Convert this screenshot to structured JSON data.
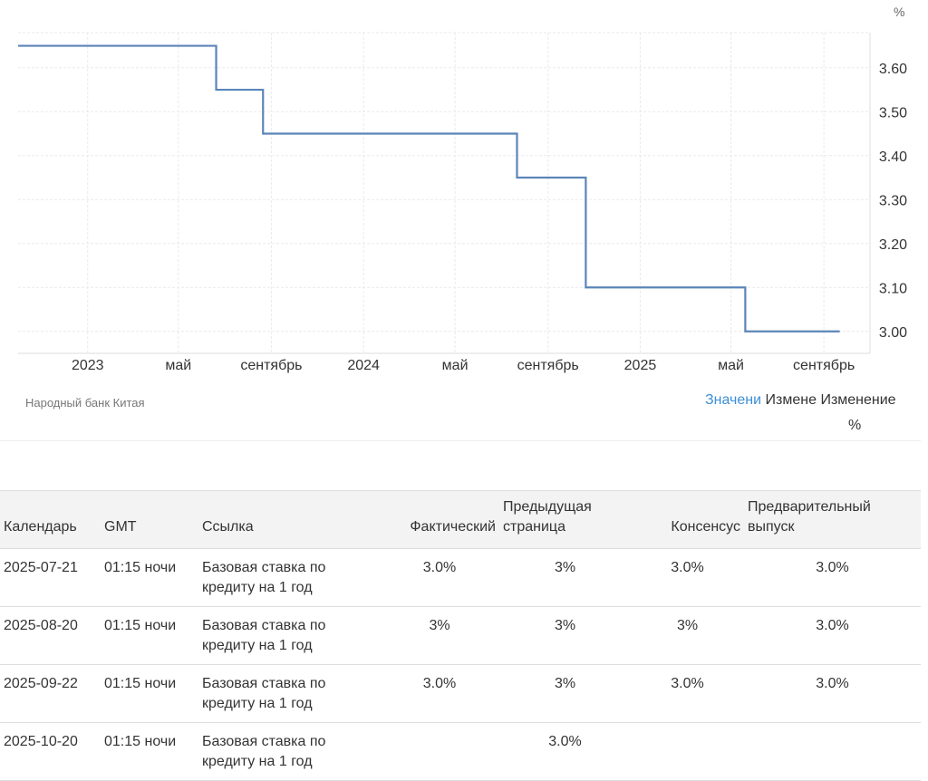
{
  "chart": {
    "unit_label": "%",
    "source": "Народный банк Китая",
    "tabs": {
      "value": "Значени",
      "change": "Измене",
      "change_pct_line1": "Изменение",
      "change_pct_line2": "%"
    }
  },
  "chart_data": {
    "type": "line",
    "step": true,
    "x_tick_labels": [
      "2023",
      "май",
      "сентябрь",
      "2024",
      "май",
      "сентябрь",
      "2025",
      "май",
      "сентябрь"
    ],
    "x_tick_dates": [
      "2023-01-01",
      "2023-05-01",
      "2023-09-01",
      "2024-01-01",
      "2024-05-01",
      "2024-09-01",
      "2025-01-01",
      "2025-05-01",
      "2025-09-01"
    ],
    "y_ticks": [
      3.6,
      3.5,
      3.4,
      3.3,
      3.2,
      3.1,
      3.0
    ],
    "y_tick_labels": [
      "3.60",
      "3.50",
      "3.40",
      "3.30",
      "3.20",
      "3.10",
      "3.00"
    ],
    "ylim": [
      2.95,
      3.68
    ],
    "xlim": [
      "2022-10-01",
      "2025-11-01"
    ],
    "y_axis_position": "right",
    "grid": true,
    "line_color": "#5b85b8",
    "series": [
      {
        "points": [
          {
            "x": "2022-10-01",
            "y": 3.65
          },
          {
            "x": "2023-06-20",
            "y": 3.55
          },
          {
            "x": "2023-08-21",
            "y": 3.45
          },
          {
            "x": "2024-07-22",
            "y": 3.35
          },
          {
            "x": "2024-10-21",
            "y": 3.1
          },
          {
            "x": "2025-05-20",
            "y": 3.0
          },
          {
            "x": "2025-09-22",
            "y": 3.0
          }
        ]
      }
    ]
  },
  "table": {
    "headers": {
      "calendar": "Календарь",
      "gmt": "GMT",
      "reference": "Ссылка",
      "actual": "Фактический",
      "previous_1": "Предыдущая",
      "previous_2": "страница",
      "consensus": "Консенсус",
      "forecast_1": "Предварительный",
      "forecast_2": "выпуск"
    },
    "rows": [
      {
        "date": "2025-07-21",
        "time": "01:15 ночи",
        "ref_1": "Базовая ставка по",
        "ref_2": "кредиту на 1 год",
        "actual": "3.0%",
        "previous": "3%",
        "consensus": "3.0%",
        "forecast": "3.0%"
      },
      {
        "date": "2025-08-20",
        "time": "01:15 ночи",
        "ref_1": "Базовая ставка по",
        "ref_2": "кредиту на 1 год",
        "actual": "3%",
        "previous": "3%",
        "consensus": "3%",
        "forecast": "3.0%"
      },
      {
        "date": "2025-09-22",
        "time": "01:15 ночи",
        "ref_1": "Базовая ставка по",
        "ref_2": "кредиту на 1 год",
        "actual": "3.0%",
        "previous": "3%",
        "consensus": "3.0%",
        "forecast": "3.0%"
      },
      {
        "date": "2025-10-20",
        "time": "01:15 ночи",
        "ref_1": "Базовая ставка по",
        "ref_2": "кредиту на 1 год",
        "actual": "",
        "previous": "3.0%",
        "consensus": "",
        "forecast": ""
      }
    ]
  }
}
